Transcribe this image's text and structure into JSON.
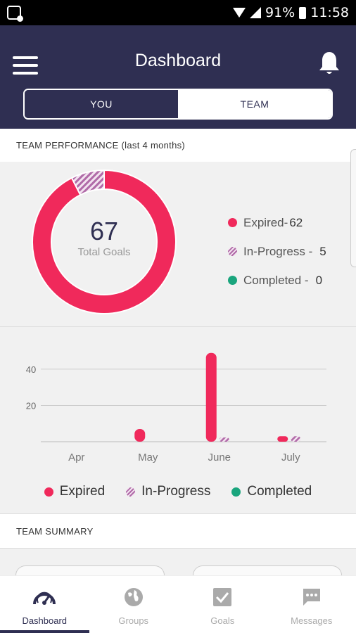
{
  "status": {
    "battery": "91%",
    "time": "11:58"
  },
  "appbar": {
    "title": "Dashboard"
  },
  "toggle": {
    "you": "YOU",
    "team": "TEAM"
  },
  "performance": {
    "header": "TEAM PERFORMANCE (last 4 months)",
    "total": "67",
    "total_label": "Total Goals",
    "legend": [
      {
        "label": "Expired-",
        "value": "62"
      },
      {
        "label": "In-Progress -",
        "value": "5"
      },
      {
        "label": "Completed -",
        "value": "0"
      }
    ]
  },
  "chart_data": [
    {
      "type": "pie",
      "labels": [
        "Expired",
        "In-Progress",
        "Completed"
      ],
      "values": [
        62,
        5,
        0
      ],
      "colors": [
        "#f0295b",
        "#b06aa8",
        "#1aa57d"
      ]
    },
    {
      "type": "bar",
      "categories": [
        "Apr",
        "May",
        "June",
        "July"
      ],
      "series": [
        {
          "name": "Expired",
          "values": [
            0,
            7,
            49,
            3
          ]
        },
        {
          "name": "In-Progress",
          "values": [
            0,
            0,
            0.5,
            3
          ]
        },
        {
          "name": "Completed",
          "values": [
            0,
            0,
            0,
            0
          ]
        }
      ],
      "yticks": [
        "20",
        "40"
      ],
      "ylim": [
        0,
        52
      ],
      "grid": true,
      "legend": "bottom"
    }
  ],
  "chart_legend": [
    "Expired",
    "In-Progress",
    "Completed"
  ],
  "summary": {
    "header": "TEAM SUMMARY"
  },
  "nav": [
    {
      "label": "Dashboard",
      "icon": "dashboard-gauge-icon"
    },
    {
      "label": "Groups",
      "icon": "globe-icon"
    },
    {
      "label": "Goals",
      "icon": "checkbox-icon"
    },
    {
      "label": "Messages",
      "icon": "chat-bubble-icon"
    }
  ]
}
